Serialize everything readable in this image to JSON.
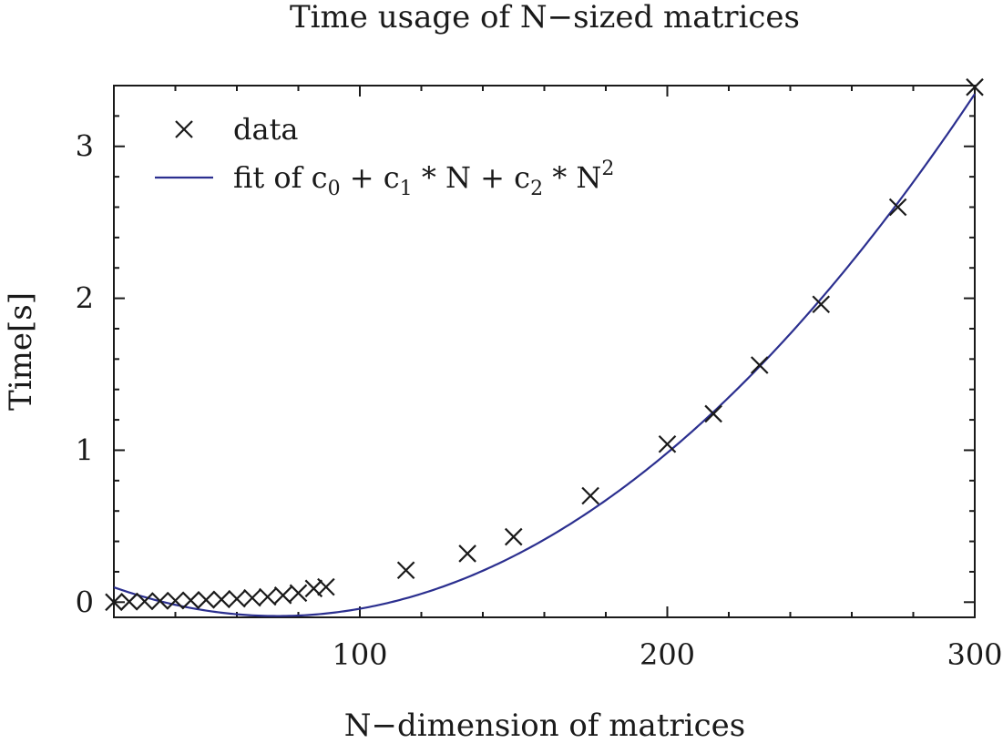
{
  "chart_data": {
    "type": "scatter",
    "title": "Time usage of N−sized matrices",
    "xlabel": "N−dimension of matrices",
    "ylabel": "Time[s]",
    "xlim": [
      20,
      300
    ],
    "ylim": [
      -0.1,
      3.4
    ],
    "x_ticks": [
      100,
      200,
      300
    ],
    "y_ticks": [
      0,
      1,
      2,
      3
    ],
    "x_minor_step": 20,
    "y_minor_step": 0.2,
    "grid": false,
    "legend_position": "top-left",
    "series": [
      {
        "name": "data",
        "kind": "scatter",
        "marker": "x",
        "color": "#1a1a1a",
        "points": [
          [
            20,
            0.0
          ],
          [
            25,
            0.003
          ],
          [
            30,
            0.005
          ],
          [
            35,
            0.008
          ],
          [
            40,
            0.01
          ],
          [
            45,
            0.012
          ],
          [
            50,
            0.015
          ],
          [
            55,
            0.018
          ],
          [
            60,
            0.022
          ],
          [
            65,
            0.028
          ],
          [
            70,
            0.035
          ],
          [
            75,
            0.045
          ],
          [
            80,
            0.06
          ],
          [
            85,
            0.09
          ],
          [
            89,
            0.1
          ],
          [
            115,
            0.21
          ],
          [
            135,
            0.32
          ],
          [
            150,
            0.43
          ],
          [
            175,
            0.7
          ],
          [
            200,
            1.04
          ],
          [
            215,
            1.24
          ],
          [
            230,
            1.56
          ],
          [
            250,
            1.96
          ],
          [
            275,
            2.6
          ],
          [
            300,
            3.39
          ]
        ]
      },
      {
        "name": "fit of c0 + c1 * N + c2 * N^2",
        "kind": "line",
        "color": "#2b2f8f",
        "model": "quadratic",
        "coefficients": [
          0.2667,
          -0.00978,
          6.68e-05
        ],
        "x_range": [
          20,
          300
        ]
      }
    ]
  }
}
